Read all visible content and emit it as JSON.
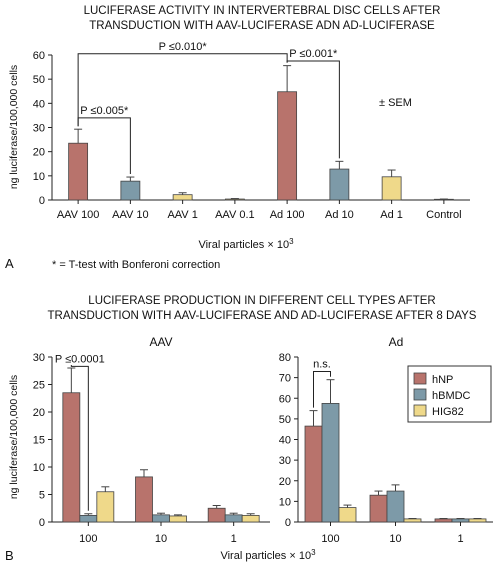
{
  "colors": {
    "pink": "#b8736c",
    "steel": "#7d9aa8",
    "yellow": "#efd98a"
  },
  "panel_a": {
    "letter": "A",
    "footnote": "* = T-test with Bonferoni correction",
    "sem_label": "± SEM"
  },
  "panel_b": {
    "letter": "B",
    "title_line1": "LUCIFERASE PRODUCTION IN DIFFERENT CELL TYPES AFTER",
    "title_line2": "TRANSDUCTION WITH AAV-LUCIFERASE AND AD-LUCIFERASE AFTER 8 DAYS"
  },
  "chart_data": [
    {
      "type": "bar",
      "title_line1": "LUCIFERASE ACTIVITY IN INTERVERTEBRAL DISC CELLS AFTER",
      "title_line2": "TRANSDUCTION WITH AAV-LUCIFERASE ADN AD-LUCIFERASE",
      "ylabel": "ng luciferase/100,000 cells",
      "xlabel": "Viral particles × 10",
      "xlabel_sup": "3",
      "ylim": [
        0,
        60
      ],
      "yticks": [
        "0",
        "10",
        "20",
        "30",
        "40",
        "50",
        "60"
      ],
      "categories": [
        "AAV 100",
        "AAV 10",
        "AAV 1",
        "AAV 0.1",
        "Ad 100",
        "Ad 10",
        "Ad 1",
        "Control"
      ],
      "values": [
        23.5,
        7.8,
        2.2,
        0.4,
        44.8,
        12.8,
        9.6,
        0.3
      ],
      "errors": [
        5.8,
        1.7,
        0.8,
        0.2,
        10.8,
        3.2,
        2.8,
        0.1
      ],
      "bar_colors": [
        "pink",
        "steel",
        "yellow",
        "yellow",
        "pink",
        "steel",
        "yellow",
        "steel"
      ],
      "annotations": [
        {
          "text": "P ≤0.010*",
          "from": 0,
          "to": 4,
          "level": 60.5
        },
        {
          "text": "P ≤0.001*",
          "from": 4,
          "to": 5,
          "level": 57.5
        },
        {
          "text": "P ≤0.005*",
          "from": 0,
          "to": 1,
          "level": 34
        }
      ]
    },
    {
      "type": "bar",
      "title": "AAV",
      "ylabel": "ng luciferase/100,000 cells",
      "ylim": [
        0,
        30
      ],
      "yticks": [
        "0",
        "5",
        "10",
        "15",
        "20",
        "25",
        "30"
      ],
      "categories": [
        "100",
        "10",
        "1"
      ],
      "series": [
        {
          "color": "pink",
          "values": [
            23.5,
            8.2,
            2.5
          ],
          "errors": [
            4.5,
            1.3,
            0.5
          ]
        },
        {
          "color": "steel",
          "values": [
            1.2,
            1.3,
            1.3
          ],
          "errors": [
            0.3,
            0.3,
            0.3
          ]
        },
        {
          "color": "yellow",
          "values": [
            5.5,
            1.1,
            1.2
          ],
          "errors": [
            0.9,
            0.2,
            0.3
          ]
        }
      ],
      "annotations": [
        {
          "text": "P ≤0.0001",
          "category": 0,
          "from_series": 0,
          "to_series": 1,
          "level": 28.3
        }
      ]
    },
    {
      "type": "bar",
      "title": "Ad",
      "ylim": [
        0,
        80
      ],
      "yticks": [
        "0",
        "10",
        "20",
        "30",
        "40",
        "50",
        "60",
        "70",
        "80"
      ],
      "categories": [
        "100",
        "10",
        "1"
      ],
      "series": [
        {
          "name": "hNP",
          "color": "pink",
          "values": [
            46.5,
            13,
            1.5
          ],
          "errors": [
            7.5,
            2,
            0.2
          ]
        },
        {
          "name": "hBMDC",
          "color": "steel",
          "values": [
            57.5,
            15,
            1.5
          ],
          "errors": [
            11.5,
            3,
            0.2
          ]
        },
        {
          "name": "HIG82",
          "color": "yellow",
          "values": [
            7,
            1.5,
            1.5
          ],
          "errors": [
            1.2,
            0.2,
            0.2
          ]
        }
      ],
      "annotations": [
        {
          "text": "n.s.",
          "category": 0,
          "from_series": 0,
          "to_series": 1,
          "level": 73
        }
      ],
      "legend": "top-right",
      "xlabel": "Viral particles × 10",
      "xlabel_sup": "3"
    }
  ]
}
